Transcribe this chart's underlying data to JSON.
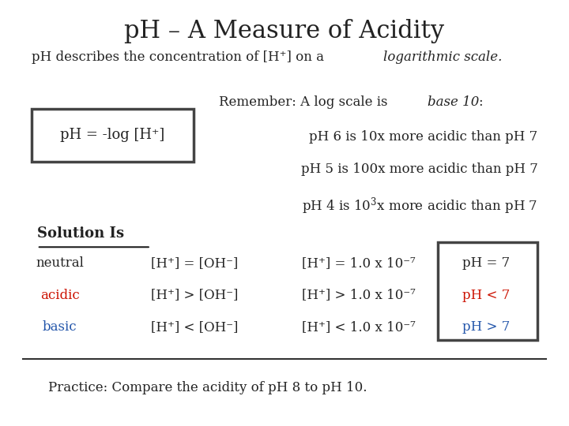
{
  "title": "pH – A Measure of Acidity",
  "title_color": "#222222",
  "subtitle_normal": "pH describes the concentration of [H⁺] on a ",
  "subtitle_italic": "logarithmic scale.",
  "formula_box_text": "pH = -log [H⁺]",
  "remember_normal": "Remember: A log scale is ",
  "remember_italic": "base 10",
  "remember_colon": ":",
  "line1": "pH 6 is 10x more acidic than pH 7",
  "line2": "pH 5 is 100x more acidic than pH 7",
  "solution_label": "Solution Is",
  "rows": [
    {
      "label": "neutral",
      "label_color": "#222222",
      "col2": "[H⁺] = [OH⁻]",
      "col3": "[H⁺] = 1.0 x 10⁻⁷",
      "col4": "pH = 7",
      "col4_color": "#222222"
    },
    {
      "label": "acidic",
      "label_color": "#cc1100",
      "col2": "[H⁺] > [OH⁻]",
      "col3": "[H⁺] > 1.0 x 10⁻⁷",
      "col4": "pH < 7",
      "col4_color": "#cc1100"
    },
    {
      "label": "basic",
      "label_color": "#2255aa",
      "col2": "[H⁺] < [OH⁻]",
      "col3": "[H⁺] < 1.0 x 10⁻⁷",
      "col4": "pH > 7",
      "col4_color": "#2255aa"
    }
  ],
  "practice": "Practice: Compare the acidity of pH 8 to pH 10."
}
